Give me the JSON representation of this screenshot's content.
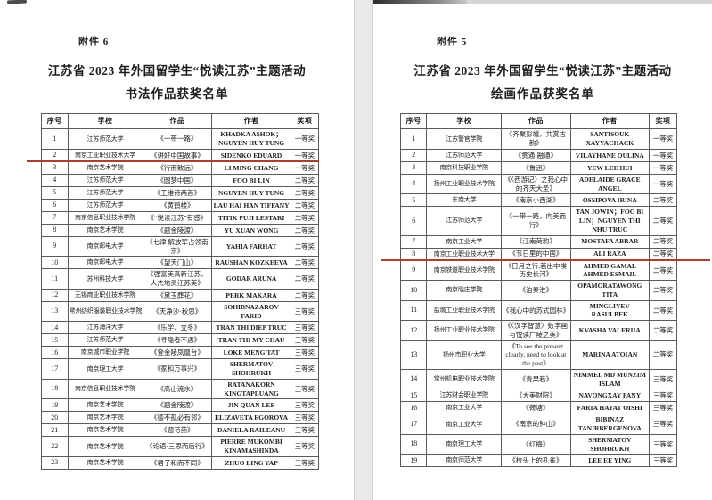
{
  "pages": [
    {
      "attachment_label": "附件 6",
      "title_line1": "江苏省 2023 年外国留学生“悦读江苏”主题活动",
      "title_line2": "书法作品获奖名单",
      "table": {
        "headers": [
          "序号",
          "学校",
          "作品",
          "作者",
          "奖项"
        ],
        "redline_after_seq": "2",
        "redline_color": "#a8402f",
        "rows": [
          [
            "1",
            "江苏师范大学",
            "《一带一路》",
            "KHADKA ASHOK；NGUYEN HUY TUNG",
            "一等奖"
          ],
          [
            "2",
            "南京工业职业技术大学",
            "《讲好中国故事》",
            "SIDENKO EDUARD",
            "一等奖"
          ],
          [
            "3",
            "南京艺术学院",
            "《行而致远》",
            "LI MING CHANG",
            "一等奖"
          ],
          [
            "4",
            "江苏师范大学",
            "《圆梦中国》",
            "FOO BI LIN",
            "二等奖"
          ],
          [
            "5",
            "江苏师范大学",
            "《王维诗两首》",
            "NGUYEN HUY TUNG",
            "二等奖"
          ],
          [
            "6",
            "江苏师范大学",
            "《黄鹤楼》",
            "LAU HAI HAN TIFFANY",
            "二等奖"
          ],
          [
            "7",
            "南京信息职业技术学院",
            "《“悦读江苏”有感》",
            "TITIK PUJI LESTARI",
            "二等奖"
          ],
          [
            "8",
            "南京艺术学院",
            "《题金陵渡》",
            "YU XUAN WONG",
            "二等奖"
          ],
          [
            "9",
            "南京邮电大学",
            "《七律 解放军占领南京》",
            "YAHIA FARHAT",
            "二等奖"
          ],
          [
            "10",
            "南京邮电大学",
            "《望天门山》",
            "RAUSHAN KOZKEEVA",
            "二等奖"
          ],
          [
            "11",
            "苏州科技大学",
            "《强富美高新江苏，人杰地灵江苏美》",
            "GODAR ARUNA",
            "二等奖"
          ],
          [
            "12",
            "无锡商业职业技术学院",
            "《黛玉葬花》",
            "PERK MAKARA",
            "二等奖"
          ],
          [
            "13",
            "常州纺织服装职业技术学院",
            "《天净沙·秋思》",
            "SOHIBNAZAROV FARID",
            "三等奖"
          ],
          [
            "14",
            "江苏海洋大学",
            "《乐学、立冬》",
            "TRAN THI DIEP TRUC",
            "三等奖"
          ],
          [
            "15",
            "江苏师范大学",
            "《寻隐者不遇》",
            "TRAN THI MY CHAU",
            "三等奖"
          ],
          [
            "16",
            "南京城市职业学院",
            "《登金陵凤凰台》",
            "LOKE MENG TAT",
            "三等奖"
          ],
          [
            "17",
            "南京理工大学",
            "《家和万事兴》",
            "SHERMATOV SHOHRUKH",
            "三等奖"
          ],
          [
            "18",
            "南京信息职业技术学院",
            "《高山流水》",
            "RATANAKORN KINGTAPLUANG",
            "三等奖"
          ],
          [
            "19",
            "南京艺术学院",
            "《题金陵渡》",
            "JIN QUAN LEE",
            "三等奖"
          ],
          [
            "20",
            "南京艺术学院",
            "《德不孤必有邻》",
            "ELIZAVETA EGOROVA",
            "三等奖"
          ],
          [
            "21",
            "南京艺术学院",
            "《题芍药》",
            "DANIELA RAILEANU",
            "三等奖"
          ],
          [
            "22",
            "南京艺术学院",
            "《论语·三思而后行》",
            "PIERRE MUKOMBI KINAMASHINDA",
            "三等奖"
          ],
          [
            "23",
            "南京艺术学院",
            "《君子和而不同》",
            "ZHUO LING YAP",
            "三等奖"
          ]
        ]
      }
    },
    {
      "attachment_label": "附件 5",
      "title_line1": "江苏省 2023 年外国留学生“悦读江苏”主题活动",
      "title_line2": "绘画作品获奖名单",
      "table": {
        "headers": [
          "序号",
          "学校",
          "作品",
          "作者",
          "奖项"
        ],
        "redline_after_seq": "8",
        "redline_color": "#a8402f",
        "rows": [
          [
            "1",
            "江苏警官学院",
            "《齐聚彭城，共赏古韵》",
            "SANTISOUK XAYYACHACK",
            "一等奖"
          ],
          [
            "2",
            "江苏师范大学",
            "《贯通·融通》",
            "VILAYHANE OULINA",
            "一等奖"
          ],
          [
            "3",
            "南京科技职业学院",
            "《鲁迅》",
            "YEW LEE HUI",
            "一等奖"
          ],
          [
            "4",
            "扬州工业职业技术学院",
            "《〈西游记〉之我心中的齐天大圣》",
            "ADELAIDE GRACE ANGEL",
            "一等奖"
          ],
          [
            "5",
            "东南大学",
            "《南京小西湖》",
            "OSSIPOVA IRINA",
            "二等奖"
          ],
          [
            "6",
            "江苏师范大学",
            "《一带一路，向美而行》",
            "TAN JOWIN；FOO BI LIN；NGUYEN THI NHU TRUC",
            "二等奖"
          ],
          [
            "7",
            "南京工业大学",
            "《江南荷韵》",
            "MOSTAFA ABRAR",
            "二等奖"
          ],
          [
            "8",
            "南京工业职业技术大学",
            "《节日里的中国》",
            "ALI RAZA",
            "二等奖"
          ],
          [
            "9",
            "南京铁道职业技术学院",
            "《日月之行,若出中埃历史长河》",
            "AHMED GAMAL AHMED ESMAIL",
            "二等奖"
          ],
          [
            "10",
            "南京晓庄学院",
            "《泊秦淮》",
            "OPAMORATAWONG TITA",
            "二等奖"
          ],
          [
            "11",
            "盐城工业职业技术学院",
            "《我心中的苏式园林》",
            "MINGLIYEV RASULBEK",
            "二等奖"
          ],
          [
            "12",
            "扬州工业职业技术学院",
            "《〈汉字智慧〉数字画与悦读广陵之美》",
            "KVASHA VALERIIA",
            "二等奖"
          ],
          [
            "13",
            "扬州市职业大学",
            "《To see the present clearly, need to look at the past》",
            "MARINA ATOIAN",
            "二等奖"
          ],
          [
            "14",
            "常州机电职业技术学院",
            "《青果巷》",
            "NIMMEL MD MUNZIM ISLAM",
            "三等奖"
          ],
          [
            "15",
            "江苏财会职业学院",
            "《大美财院》",
            "NAVONGXAY PANY",
            "三等奖"
          ],
          [
            "16",
            "南京工业大学",
            "《荷塘》",
            "FARIA HAYAT OISHI",
            "三等奖"
          ],
          [
            "17",
            "南京工业大学",
            "《南京的钟山》",
            "BIBINAZ TANIRBERGENOVA",
            "三等奖"
          ],
          [
            "18",
            "南京理工大学",
            "《红梅》",
            "SHERMATOV SHOHRUKH",
            "三等奖"
          ],
          [
            "19",
            "南京师范大学",
            "《枝头上的孔雀》",
            "LEE EE YING",
            "三等奖"
          ]
        ]
      }
    }
  ]
}
